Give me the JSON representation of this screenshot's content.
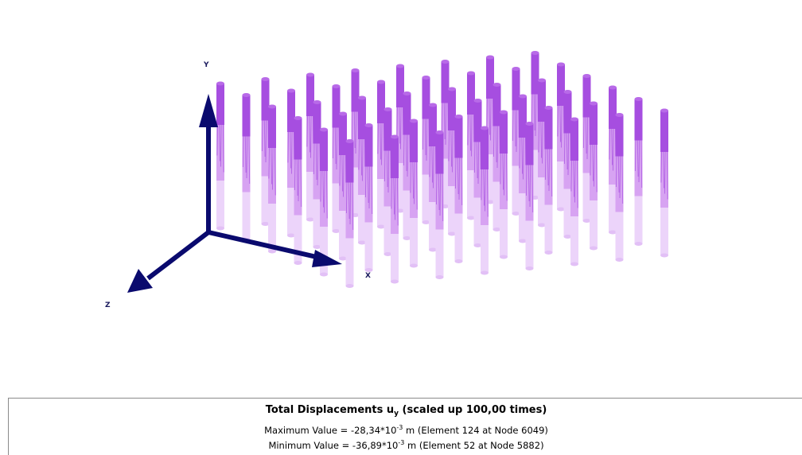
{
  "viewport": {
    "axes": {
      "x_label": "X",
      "y_label": "Y",
      "z_label": "Z",
      "color": "#0a0a6e"
    },
    "colors": {
      "pile_top": "#a64ee0",
      "pile_top_cap": "#b86ae8",
      "pile_mid": "#d7a3f2",
      "pile_mid_stripe": "#a64ee0",
      "pile_bottom": "#ecd4fa",
      "pile_bottom_cap": "#e2c0f6"
    },
    "pile_count": 48
  },
  "legend": {
    "title_main": "Total Displacements u",
    "title_sub": "y",
    "title_rest": " (scaled up 100,00 times)",
    "max_prefix": "Maximum Value = -28,34*10",
    "max_exp": "-3",
    "max_suffix": " m (Element 124 at Node 6049)",
    "min_prefix": "Minimum Value = -36,89*10",
    "min_exp": "-3",
    "min_suffix": " m (Element 52 at Node 5882)"
  }
}
